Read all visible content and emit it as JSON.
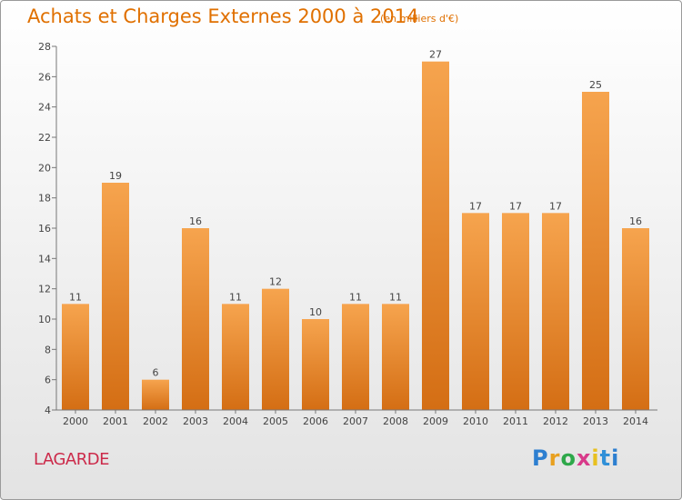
{
  "chart_data": {
    "type": "bar",
    "title": "Achats et Charges Externes 2000 à 2014",
    "subtitle": "(en milliers d'€)",
    "categories": [
      "2000",
      "2001",
      "2002",
      "2003",
      "2004",
      "2005",
      "2006",
      "2007",
      "2008",
      "2009",
      "2010",
      "2011",
      "2012",
      "2013",
      "2014"
    ],
    "values": [
      11,
      19,
      6,
      16,
      11,
      12,
      10,
      11,
      11,
      27,
      17,
      17,
      17,
      25,
      16
    ],
    "data_labels": [
      "11",
      "19",
      "6",
      "16",
      "11",
      "12",
      "10",
      "11",
      "11",
      "27",
      "17",
      "17",
      "17",
      "25",
      "16"
    ],
    "ylim": [
      4,
      28
    ],
    "yticks": [
      "4",
      "6",
      "8",
      "10",
      "12",
      "14",
      "16",
      "18",
      "20",
      "22",
      "24",
      "26",
      "28"
    ],
    "grid": false,
    "bar_color": "#e8862a",
    "xlabel": "",
    "ylabel": ""
  },
  "footer": {
    "commune": "LAGARDE",
    "logo_letters": [
      "P",
      "r",
      "o",
      "x",
      "i",
      "t",
      "i"
    ]
  }
}
